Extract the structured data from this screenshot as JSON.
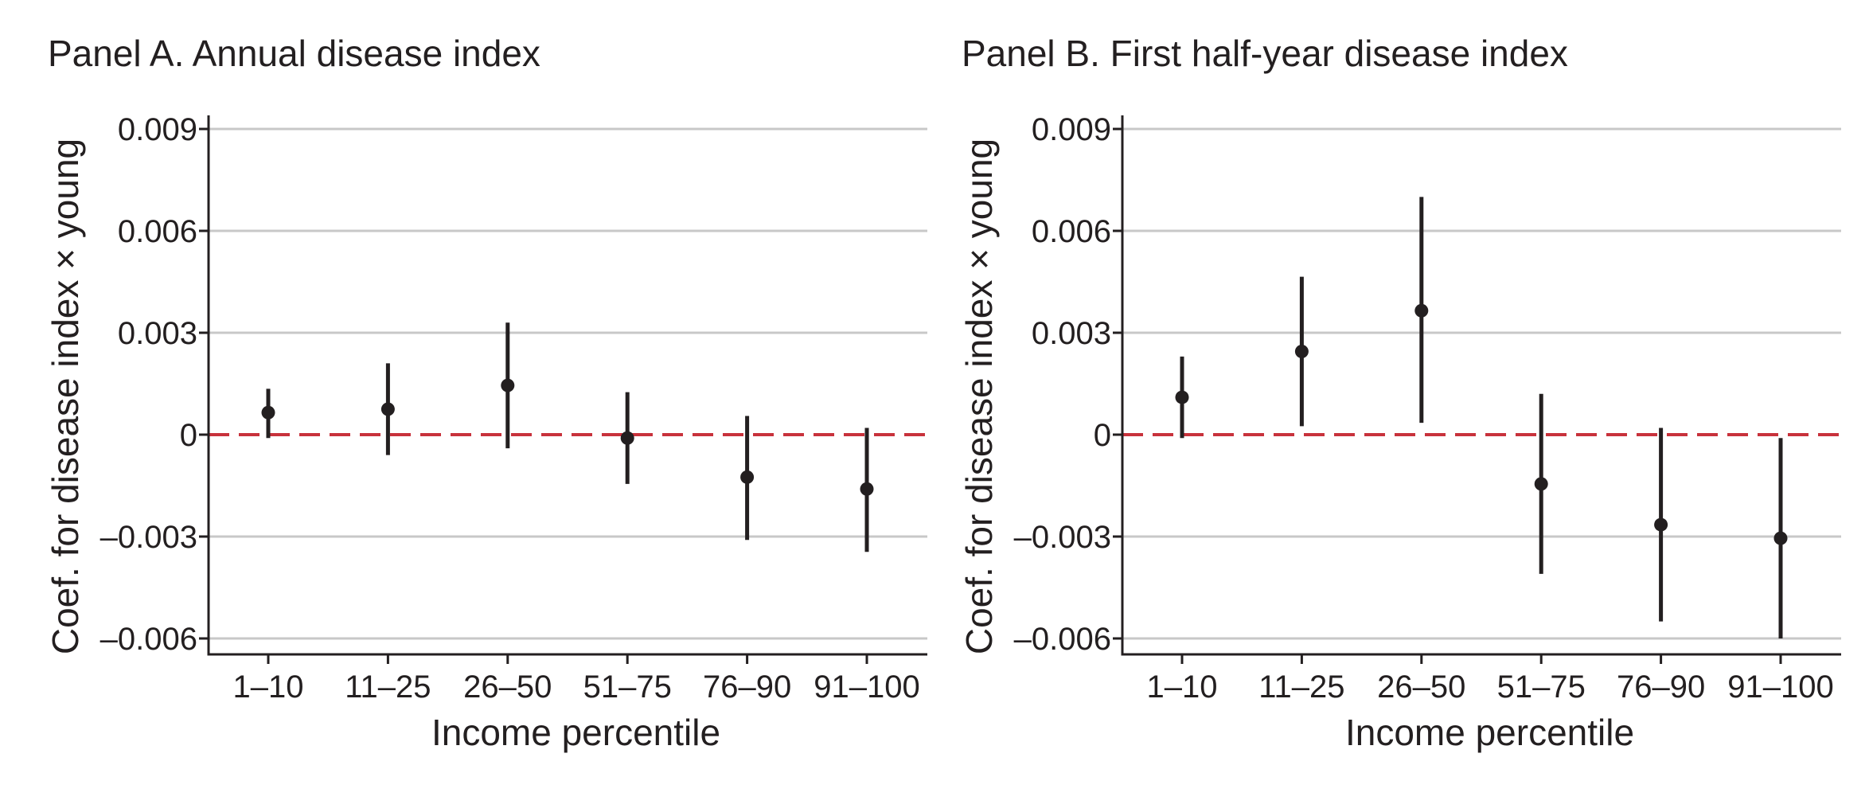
{
  "chart_data": [
    {
      "type": "scatter",
      "title": "Panel A. Annual disease index",
      "xlabel": "Income percentile",
      "ylabel": "Coef. for disease index × young",
      "categories": [
        "1–10",
        "11–25",
        "26–50",
        "51–75",
        "76–90",
        "91–100"
      ],
      "yticks": [
        0.009,
        0.006,
        0.003,
        0,
        -0.003,
        -0.006
      ],
      "ytick_labels": [
        "0.009",
        "0.006",
        "0.003",
        "0",
        "–0.003",
        "–0.006"
      ],
      "ylim": [
        -0.0064,
        0.0094
      ],
      "grid": true,
      "reference_line": {
        "y": 0,
        "style": "dashed",
        "color": "#c8323c"
      },
      "series": [
        {
          "estimate": [
            0.00065,
            0.00075,
            0.00145,
            -0.0001,
            -0.00125,
            -0.0016
          ],
          "ci_low": [
            -0.0001,
            -0.0006,
            -0.0004,
            -0.00145,
            -0.0031,
            -0.00345
          ],
          "ci_high": [
            0.00135,
            0.0021,
            0.0033,
            0.00125,
            0.00055,
            0.0002
          ]
        }
      ]
    },
    {
      "type": "scatter",
      "title": "Panel B. First half-year disease index",
      "xlabel": "Income percentile",
      "ylabel": "Coef. for disease index × young",
      "categories": [
        "1–10",
        "11–25",
        "26–50",
        "51–75",
        "76–90",
        "91–100"
      ],
      "yticks": [
        0.009,
        0.006,
        0.003,
        0,
        -0.003,
        -0.006
      ],
      "ytick_labels": [
        "0.009",
        "0.006",
        "0.003",
        "0",
        "–0.003",
        "–0.006"
      ],
      "ylim": [
        -0.0064,
        0.0094
      ],
      "grid": true,
      "reference_line": {
        "y": 0,
        "style": "dashed",
        "color": "#c8323c"
      },
      "series": [
        {
          "estimate": [
            0.0011,
            0.00245,
            0.00365,
            -0.00145,
            -0.00265,
            -0.00305
          ],
          "ci_low": [
            -0.0001,
            0.00025,
            0.00035,
            -0.0041,
            -0.0055,
            -0.006
          ],
          "ci_high": [
            0.0023,
            0.00465,
            0.007,
            0.0012,
            0.0002,
            -0.0001
          ]
        }
      ]
    }
  ],
  "colors": {
    "grid": "#c8c8c8",
    "reference": "#c8323c",
    "marks": "#231f20"
  }
}
